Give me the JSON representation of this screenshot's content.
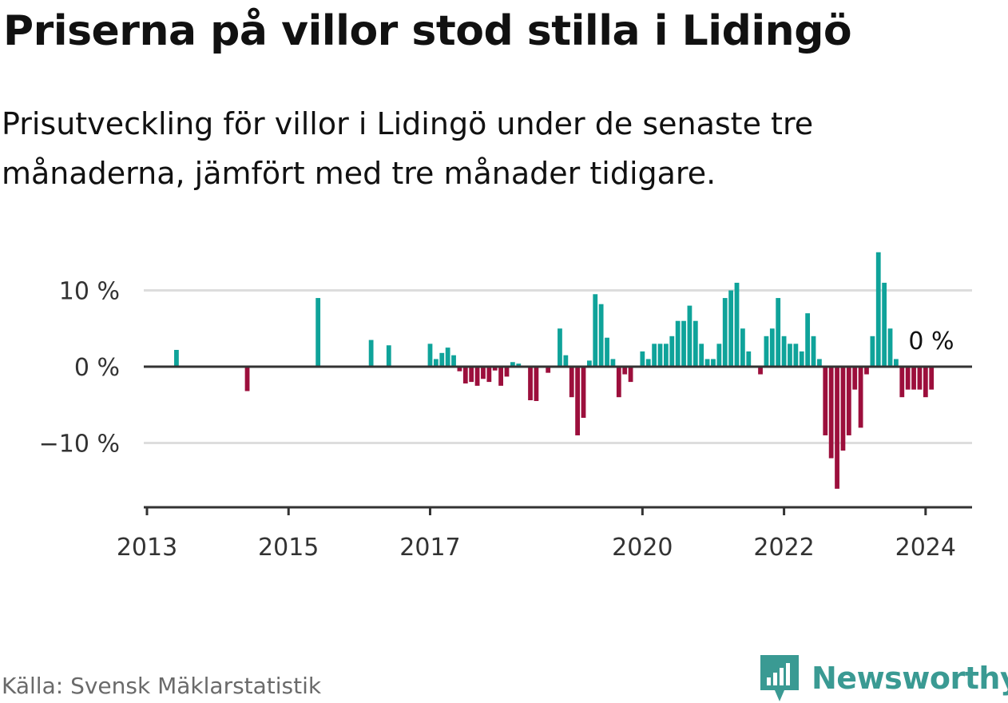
{
  "title": "Priserna på villor stod stilla i Lidingö",
  "subtitle": "Prisutveckling för villor i Lidingö under de senaste tre månaderna, jämfört med tre månader tidigare.",
  "source": "Källa: Svensk Mäklarstatistik",
  "brand": "Newsworthy",
  "colors": {
    "positive": "#0fa39a",
    "negative": "#9c0f3c",
    "grid": "#dddddd",
    "axis": "#333333",
    "brand": "#3a9a93"
  },
  "chart_data": {
    "type": "bar",
    "title": "Priserna på villor stod stilla i Lidingö",
    "xlabel": "",
    "ylabel": "",
    "unit": "%",
    "x_start": "2013-01",
    "frequency": "monthly",
    "xlim": [
      "2013-01",
      "2024-07"
    ],
    "ylim": [
      -18,
      15
    ],
    "y_ticks": [
      {
        "value": 10,
        "label": "10 %"
      },
      {
        "value": 0,
        "label": "0 %"
      },
      {
        "value": -10,
        "label": "−10 %"
      }
    ],
    "x_ticks": [
      {
        "month_index": 0,
        "label": "2013"
      },
      {
        "month_index": 24,
        "label": "2015"
      },
      {
        "month_index": 48,
        "label": "2017"
      },
      {
        "month_index": 84,
        "label": "2020"
      },
      {
        "month_index": 108,
        "label": "2022"
      },
      {
        "month_index": 132,
        "label": "2024"
      }
    ],
    "annotation": {
      "label": "0 %",
      "value": 0
    },
    "values": [
      null,
      null,
      null,
      null,
      null,
      2.2,
      null,
      null,
      null,
      null,
      null,
      null,
      null,
      null,
      null,
      null,
      null,
      -3.2,
      null,
      null,
      null,
      null,
      null,
      null,
      null,
      null,
      null,
      null,
      null,
      9.0,
      null,
      null,
      null,
      null,
      null,
      null,
      null,
      null,
      3.5,
      null,
      null,
      2.8,
      null,
      null,
      null,
      null,
      null,
      null,
      3.0,
      1.0,
      1.8,
      2.5,
      1.5,
      -0.6,
      -2.2,
      -2.0,
      -2.5,
      -1.6,
      -2.0,
      -0.5,
      -2.5,
      -1.3,
      0.6,
      0.4,
      null,
      -4.4,
      -4.5,
      null,
      -0.8,
      null,
      5.0,
      1.5,
      -4.0,
      -9.0,
      -6.7,
      0.8,
      9.5,
      8.2,
      3.8,
      1.0,
      -4.0,
      -1.0,
      -2.0,
      null,
      2.0,
      1.0,
      3.0,
      3.0,
      3.0,
      4.0,
      6.0,
      6.0,
      8.0,
      6.0,
      3.0,
      1.0,
      1.0,
      3.0,
      9.0,
      10.0,
      11.0,
      5.0,
      2.0,
      null,
      -1.0,
      4.0,
      5.0,
      9.0,
      4.0,
      3.0,
      3.0,
      2.0,
      7.0,
      4.0,
      1.0,
      -9.0,
      -12.0,
      -16.0,
      -11.0,
      -9.0,
      -3.0,
      -8.0,
      -1.0,
      4.0,
      15.0,
      11.0,
      5.0,
      1.0,
      -4.0,
      -3.0,
      -3.0,
      -3.0,
      -4.0,
      -3.0
    ]
  }
}
